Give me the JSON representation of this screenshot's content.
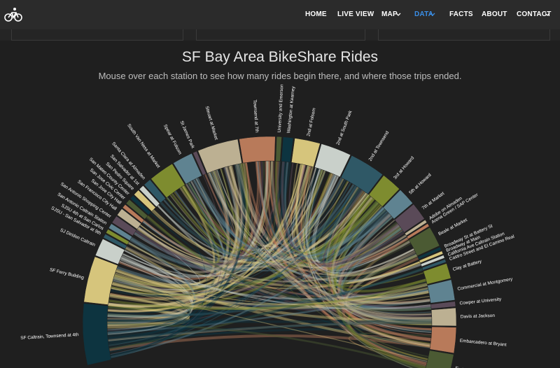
{
  "nav": {
    "items": [
      "HOME",
      "LIVE VIEW",
      "MAP",
      "DATA",
      "FACTS",
      "ABOUT",
      "CONTACT"
    ]
  },
  "header": {
    "title": "SF Bay Area BikeShare Rides",
    "subtitle": "Mouse over each station to see how many rides begin there, and where those trips ended."
  },
  "stations": [
    "SF Caltrain, Townsend at 4th",
    "SF Ferry Building",
    "SJ Diridon Caltrain",
    "SJSU - San Salvador at 9th",
    "SJSU 4th at San Carlos",
    "San Antonio Caltrain Station",
    "San Antonio Shopping Center",
    "San Francisco City Hall",
    "San Jose City Hall",
    "San Jose Civic Center",
    "San Mateo County Center",
    "San Pedro Square",
    "San Salvador at 1st",
    "Santa Clara at Almaden",
    "South Van Ness at Market",
    "Spear at Folsom",
    "St James Park",
    "Steuart at Market",
    "Townsend at 7th",
    "University and Emerson",
    "Washington at Kearney",
    "2nd at Folsom",
    "2nd at South Park",
    "2nd at Townsend",
    "3rd at Howard",
    "5th at Howard",
    "7th at Market",
    "Adobe on Almaden",
    "Arena Green / SAP Center",
    "Beale at Market",
    "Broadway St at Battery St",
    "Broadway at Main",
    "California Ave Caltrain Station",
    "Castro Street and El Camino Real",
    "Clay at Battery",
    "Commercial at Montgomery",
    "Cowper at University",
    "Davis at Jackson",
    "Embarcadero at Bryant",
    "Embarcadero at Folsom"
  ]
}
